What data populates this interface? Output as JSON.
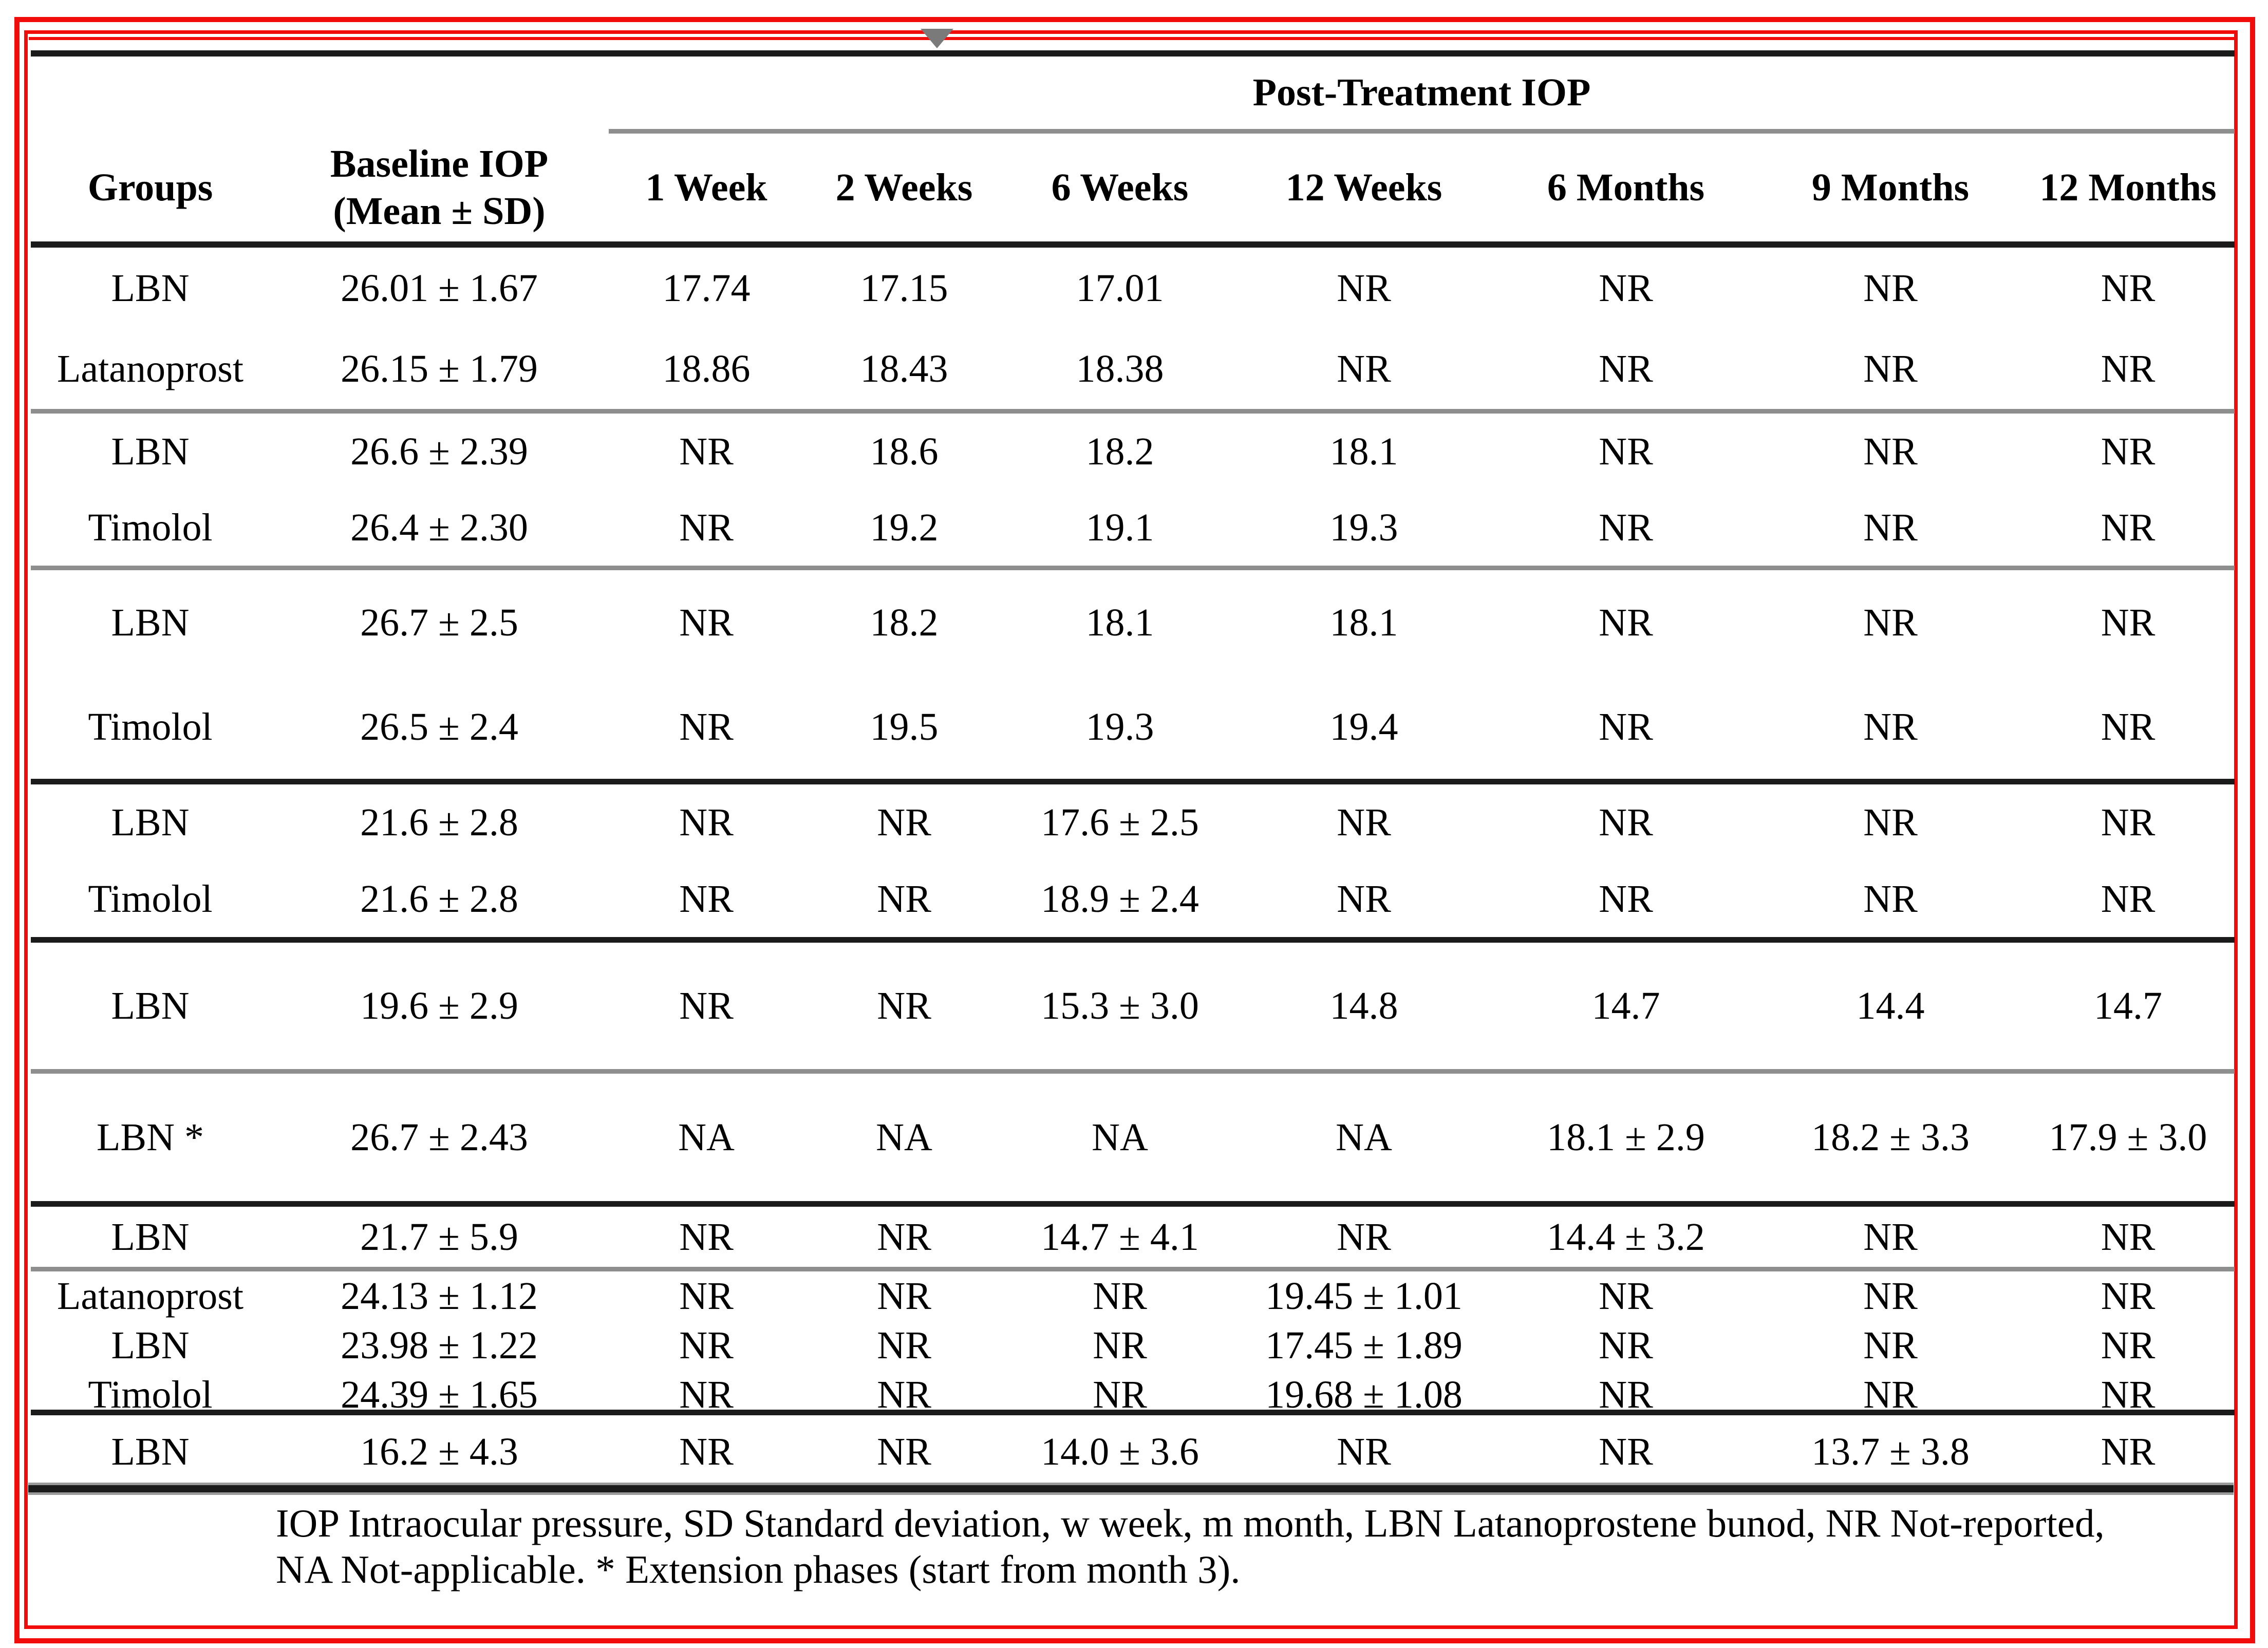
{
  "colors": {
    "annotation_red": "#f20d0d",
    "rule_black": "#1b1b1b",
    "rule_gray": "#8e8e8e",
    "marker_gray": "#7a7a7a",
    "text": "#000000"
  },
  "marker": {
    "icon": "down-triangle"
  },
  "table": {
    "title": "Post-Treatment IOP",
    "columns": [
      {
        "label": "Groups"
      },
      {
        "label": "Baseline IOP",
        "sublabel": "(Mean ± SD)"
      },
      {
        "label": "1 Week"
      },
      {
        "label": "2 Weeks"
      },
      {
        "label": "6 Weeks"
      },
      {
        "label": "12 Weeks"
      },
      {
        "label": "6 Months"
      },
      {
        "label": "9 Months"
      },
      {
        "label": "12 Months"
      }
    ],
    "sections": [
      {
        "separator": "none",
        "rows": [
          [
            "LBN",
            "26.01 ± 1.67",
            "17.74",
            "17.15",
            "17.01",
            "NR",
            "NR",
            "NR",
            "NR"
          ],
          [
            "Latanoprost",
            "26.15 ± 1.79",
            "18.86",
            "18.43",
            "18.38",
            "NR",
            "NR",
            "NR",
            "NR"
          ]
        ]
      },
      {
        "separator": "gray",
        "rows": [
          [
            "LBN",
            "26.6 ± 2.39",
            "NR",
            "18.6",
            "18.2",
            "18.1",
            "NR",
            "NR",
            "NR"
          ],
          [
            "Timolol",
            "26.4 ± 2.30",
            "NR",
            "19.2",
            "19.1",
            "19.3",
            "NR",
            "NR",
            "NR"
          ]
        ]
      },
      {
        "separator": "gray",
        "rows": [
          [
            "LBN",
            "26.7 ± 2.5",
            "NR",
            "18.2",
            "18.1",
            "18.1",
            "NR",
            "NR",
            "NR"
          ],
          [
            "Timolol",
            "26.5 ± 2.4",
            "NR",
            "19.5",
            "19.3",
            "19.4",
            "NR",
            "NR",
            "NR"
          ]
        ]
      },
      {
        "separator": "black",
        "rows": [
          [
            "LBN",
            "21.6 ± 2.8",
            "NR",
            "NR",
            "17.6 ± 2.5",
            "NR",
            "NR",
            "NR",
            "NR"
          ],
          [
            "Timolol",
            "21.6 ± 2.8",
            "NR",
            "NR",
            "18.9 ± 2.4",
            "NR",
            "NR",
            "NR",
            "NR"
          ]
        ]
      },
      {
        "separator": "black",
        "rows": [
          [
            "LBN",
            "19.6 ± 2.9",
            "NR",
            "NR",
            "15.3 ± 3.0",
            "14.8",
            "14.7",
            "14.4",
            "14.7"
          ]
        ]
      },
      {
        "separator": "gray",
        "rows": [
          [
            "LBN *",
            "26.7 ± 2.43",
            "NA",
            "NA",
            "NA",
            "NA",
            "18.1 ± 2.9",
            "18.2 ± 3.3",
            "17.9 ± 3.0"
          ]
        ]
      },
      {
        "separator": "black",
        "rows": [
          [
            "LBN",
            "21.7 ± 5.9",
            "NR",
            "NR",
            "14.7 ± 4.1",
            "NR",
            "14.4 ± 3.2",
            "NR",
            "NR"
          ]
        ]
      },
      {
        "separator": "gray",
        "rows": [
          [
            "Latanoprost",
            "24.13 ± 1.12",
            "NR",
            "NR",
            "NR",
            "19.45 ± 1.01",
            "NR",
            "NR",
            "NR"
          ],
          [
            "LBN",
            "23.98 ± 1.22",
            "NR",
            "NR",
            "NR",
            "17.45 ± 1.89",
            "NR",
            "NR",
            "NR"
          ],
          [
            "Timolol",
            "24.39 ± 1.65",
            "NR",
            "NR",
            "NR",
            "19.68 ± 1.08",
            "NR",
            "NR",
            "NR"
          ]
        ]
      },
      {
        "separator": "black",
        "rows": [
          [
            "LBN",
            "16.2 ± 4.3",
            "NR",
            "NR",
            "14.0 ± 3.6",
            "NR",
            "NR",
            "13.7 ± 3.8",
            "NR"
          ]
        ]
      }
    ]
  },
  "footnote": {
    "line1": "IOP Intraocular pressure, SD Standard deviation, w week, m month, LBN Latanoprostene bunod, NR Not-reported,",
    "line2": "NA Not-applicable. * Extension phases (start from month 3)."
  }
}
